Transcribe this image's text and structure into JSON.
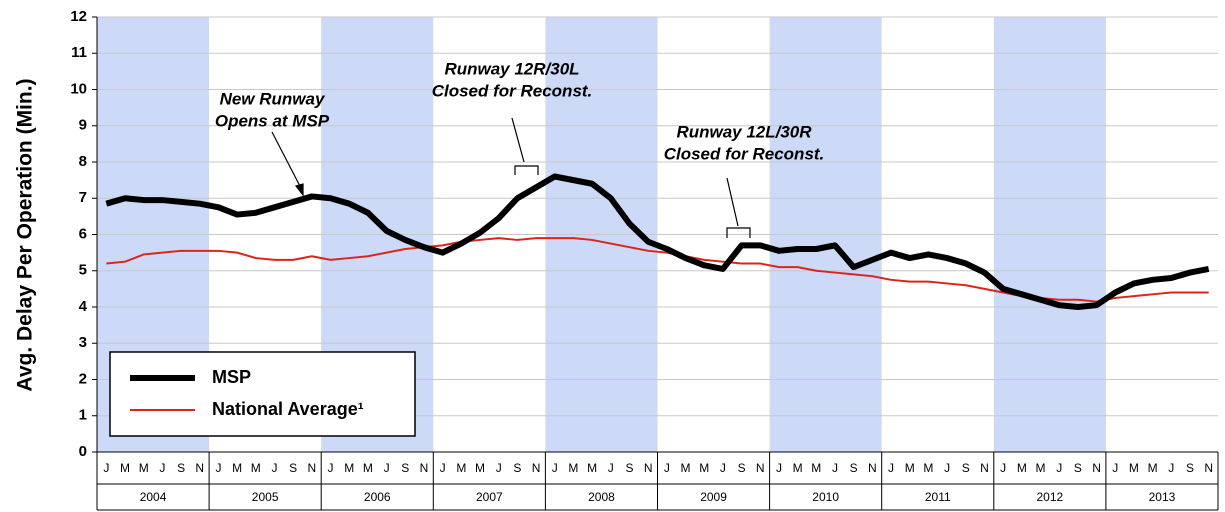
{
  "chart_data": {
    "type": "line",
    "y_label": "Avg. Delay Per Operation (Min.)",
    "categories": [
      "J",
      "M",
      "M",
      "J",
      "S",
      "N",
      "J",
      "M",
      "M",
      "J",
      "S",
      "N",
      "J",
      "M",
      "M",
      "J",
      "S",
      "N",
      "J",
      "M",
      "M",
      "J",
      "S",
      "N",
      "J",
      "M",
      "M",
      "J",
      "S",
      "N",
      "J",
      "M",
      "M",
      "J",
      "S",
      "N",
      "J",
      "M",
      "M",
      "J",
      "S",
      "N",
      "J",
      "M",
      "M",
      "J",
      "S",
      "N",
      "J",
      "M",
      "M",
      "J",
      "S",
      "N",
      "J",
      "M",
      "M",
      "J",
      "S",
      "N"
    ],
    "years": [
      "2004",
      "2005",
      "2006",
      "2007",
      "2008",
      "2009",
      "2010",
      "2011",
      "2012",
      "2013"
    ],
    "shaded_years": [
      true,
      false,
      true,
      false,
      true,
      false,
      true,
      false,
      true,
      false
    ],
    "shade_color": "#ccd9f7",
    "series": [
      {
        "name": "MSP",
        "color": "#000000",
        "values": [
          6.85,
          7.0,
          6.95,
          6.95,
          6.9,
          6.85,
          6.75,
          6.55,
          6.6,
          6.75,
          6.9,
          7.05,
          7.0,
          6.85,
          6.6,
          6.1,
          5.85,
          5.65,
          5.5,
          5.75,
          6.05,
          6.45,
          7.0,
          7.3,
          7.6,
          7.5,
          7.4,
          7.0,
          6.3,
          5.8,
          5.6,
          5.35,
          5.15,
          5.05,
          5.7,
          5.7,
          5.55,
          5.6,
          5.6,
          5.7,
          5.1,
          5.3,
          5.5,
          5.35,
          5.45,
          5.35,
          5.2,
          4.95,
          4.5,
          4.35,
          4.2,
          4.05,
          4.0,
          4.05,
          4.4,
          4.65,
          4.75,
          4.8,
          4.95,
          5.05
        ]
      },
      {
        "name": "National Average¹",
        "color": "#d9261c",
        "values": [
          5.2,
          5.25,
          5.45,
          5.5,
          5.55,
          5.55,
          5.55,
          5.5,
          5.35,
          5.3,
          5.3,
          5.4,
          5.3,
          5.35,
          5.4,
          5.5,
          5.6,
          5.65,
          5.7,
          5.8,
          5.85,
          5.9,
          5.85,
          5.9,
          5.9,
          5.9,
          5.85,
          5.75,
          5.65,
          5.55,
          5.5,
          5.4,
          5.3,
          5.25,
          5.2,
          5.2,
          5.1,
          5.1,
          5.0,
          4.95,
          4.9,
          4.85,
          4.75,
          4.7,
          4.7,
          4.65,
          4.6,
          4.5,
          4.4,
          4.3,
          4.25,
          4.2,
          4.2,
          4.15,
          4.25,
          4.3,
          4.35,
          4.4,
          4.4,
          4.4
        ]
      }
    ],
    "ylim": [
      0,
      12
    ],
    "yticks": [
      0,
      1,
      2,
      3,
      4,
      5,
      6,
      7,
      8,
      9,
      10,
      11,
      12
    ],
    "grid": true,
    "annotations": [
      [
        "New Runway",
        "Opens at MSP"
      ],
      [
        "Runway 12R/30L",
        "Closed for Reconst."
      ],
      [
        "Runway 12L/30R",
        "Closed for Reconst."
      ]
    ]
  }
}
